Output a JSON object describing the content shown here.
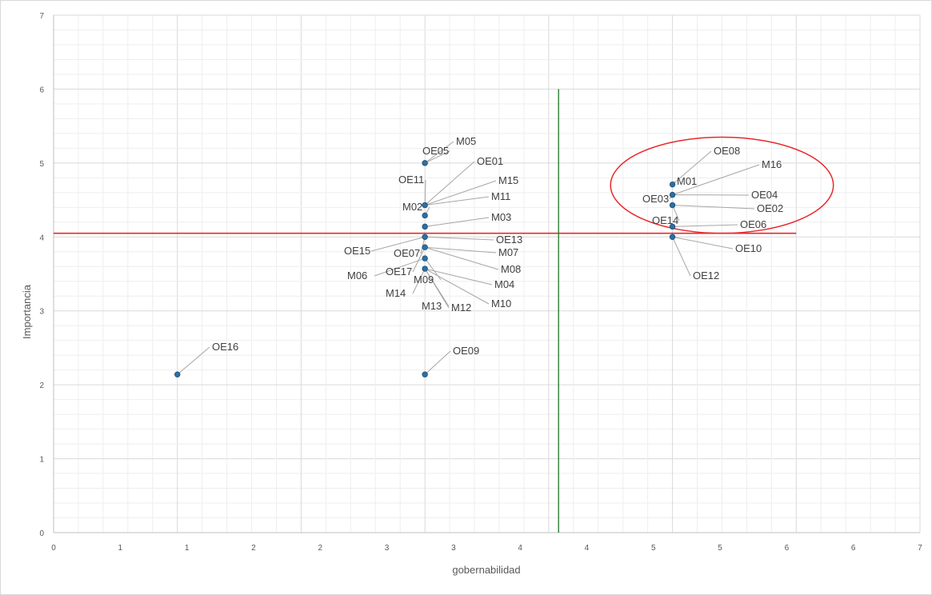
{
  "chart_data": {
    "type": "scatter",
    "title": "",
    "xlabel": "gobernabilidad",
    "ylabel": "Importancia",
    "xlim": [
      0,
      7
    ],
    "ylim": [
      0,
      7
    ],
    "x_ticks": [
      "0",
      "1",
      "1",
      "2",
      "2",
      "3",
      "3",
      "4",
      "4",
      "5",
      "5",
      "6",
      "6",
      "7"
    ],
    "y_ticks": [
      "0",
      "1",
      "2",
      "3",
      "4",
      "5",
      "6",
      "7"
    ],
    "grid": true,
    "legend": "none",
    "colors": {
      "marker": "#2e6fa0",
      "marker_stroke": "#1f4e79",
      "horizontal_line": "#e8282b",
      "vertical_line": "#2e7d32",
      "ellipse": "#e8282b",
      "grid_major": "#d9d9d9",
      "grid_minor": "#eeeeee",
      "leader": "#a6a6a6"
    },
    "reference_lines": {
      "horizontal": {
        "y": 4.05,
        "x_from": 0,
        "x_to": 6
      },
      "vertical": {
        "x": 4.08,
        "y_from": 0,
        "y_to": 6
      }
    },
    "highlight_ellipse": {
      "cx": 5.4,
      "cy": 4.7,
      "rx": 0.9,
      "ry": 0.65
    },
    "points": [
      {
        "label": "M05",
        "x": 3,
        "y": 5.0
      },
      {
        "label": "OE05",
        "x": 3,
        "y": 5.0
      },
      {
        "label": "OE01",
        "x": 3,
        "y": 4.43
      },
      {
        "label": "OE11",
        "x": 3,
        "y": 4.43
      },
      {
        "label": "M15",
        "x": 3,
        "y": 4.43
      },
      {
        "label": "M11",
        "x": 3,
        "y": 4.43
      },
      {
        "label": "M02",
        "x": 3,
        "y": 4.29
      },
      {
        "label": "M03",
        "x": 3,
        "y": 4.14
      },
      {
        "label": "OE13",
        "x": 3,
        "y": 4.0
      },
      {
        "label": "OE15",
        "x": 3,
        "y": 4.0
      },
      {
        "label": "OE07",
        "x": 3,
        "y": 4.0
      },
      {
        "label": "M07",
        "x": 3,
        "y": 3.86
      },
      {
        "label": "M08",
        "x": 3,
        "y": 3.86
      },
      {
        "label": "OE17",
        "x": 3,
        "y": 3.86
      },
      {
        "label": "M06",
        "x": 3,
        "y": 3.71
      },
      {
        "label": "M09",
        "x": 3,
        "y": 3.71
      },
      {
        "label": "M04",
        "x": 3,
        "y": 3.57
      },
      {
        "label": "M14",
        "x": 3,
        "y": 3.57
      },
      {
        "label": "M10",
        "x": 3,
        "y": 3.57
      },
      {
        "label": "M12",
        "x": 3,
        "y": 3.57
      },
      {
        "label": "M13",
        "x": 3,
        "y": 3.57
      },
      {
        "label": "OE09",
        "x": 3,
        "y": 2.14
      },
      {
        "label": "OE16",
        "x": 1,
        "y": 2.14
      },
      {
        "label": "OE08",
        "x": 5,
        "y": 4.71
      },
      {
        "label": "M01",
        "x": 5,
        "y": 4.71
      },
      {
        "label": "M16",
        "x": 5,
        "y": 4.57
      },
      {
        "label": "OE04",
        "x": 5,
        "y": 4.57
      },
      {
        "label": "OE03",
        "x": 5,
        "y": 4.57
      },
      {
        "label": "OE02",
        "x": 5,
        "y": 4.43
      },
      {
        "label": "OE14",
        "x": 5,
        "y": 4.43
      },
      {
        "label": "OE06",
        "x": 5,
        "y": 4.14
      },
      {
        "label": "OE10",
        "x": 5,
        "y": 4.0
      },
      {
        "label": "OE12",
        "x": 5,
        "y": 4.0
      }
    ]
  }
}
